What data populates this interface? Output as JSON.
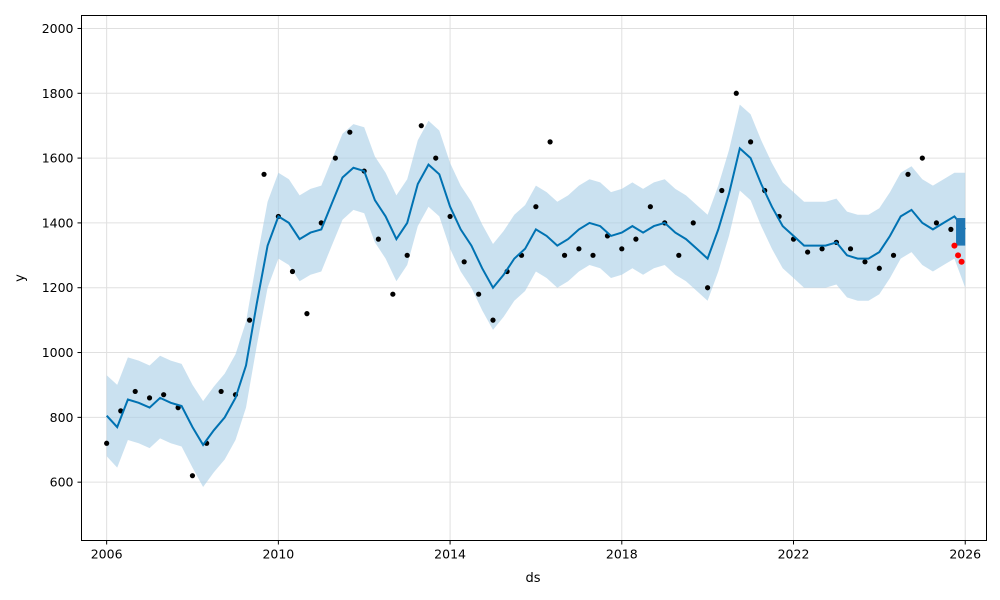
{
  "chart_data": {
    "type": "line",
    "title": "",
    "xlabel": "ds",
    "ylabel": "y",
    "xlim": [
      "2005-06-01",
      "2026-07-01"
    ],
    "ylim": [
      420,
      2040
    ],
    "x_ticks": [
      "2006",
      "2010",
      "2014",
      "2018",
      "2022",
      "2026"
    ],
    "y_ticks": [
      "600",
      "800",
      "1000",
      "1200",
      "1400",
      "1600",
      "1800",
      "2000"
    ],
    "grid": true,
    "legend": "none",
    "colors": {
      "observed": "#000000",
      "forecast_line": "#0072b2",
      "interval_fill": "#a6cde6",
      "highlight_points": "#ff0000",
      "recent_band": "#1f77b4"
    },
    "series": [
      {
        "kind": "forecast-line",
        "x": [
          "2006-01-01",
          "2006-04-01",
          "2006-07-01",
          "2006-10-01",
          "2007-01-01",
          "2007-04-01",
          "2007-07-01",
          "2007-10-01",
          "2008-01-01",
          "2008-04-01",
          "2008-07-01",
          "2008-10-01",
          "2009-01-01",
          "2009-04-01",
          "2009-07-01",
          "2009-10-01",
          "2010-01-01",
          "2010-04-01",
          "2010-07-01",
          "2010-10-01",
          "2011-01-01",
          "2011-04-01",
          "2011-07-01",
          "2011-10-01",
          "2012-01-01",
          "2012-04-01",
          "2012-07-01",
          "2012-10-01",
          "2013-01-01",
          "2013-04-01",
          "2013-07-01",
          "2013-10-01",
          "2014-01-01",
          "2014-04-01",
          "2014-07-01",
          "2014-10-01",
          "2015-01-01",
          "2015-04-01",
          "2015-07-01",
          "2015-10-01",
          "2016-01-01",
          "2016-04-01",
          "2016-07-01",
          "2016-10-01",
          "2017-01-01",
          "2017-04-01",
          "2017-07-01",
          "2017-10-01",
          "2018-01-01",
          "2018-04-01",
          "2018-07-01",
          "2018-10-01",
          "2019-01-01",
          "2019-04-01",
          "2019-07-01",
          "2019-10-01",
          "2020-01-01",
          "2020-04-01",
          "2020-07-01",
          "2020-10-01",
          "2021-01-01",
          "2021-04-01",
          "2021-07-01",
          "2021-10-01",
          "2022-01-01",
          "2022-04-01",
          "2022-07-01",
          "2022-10-01",
          "2023-01-01",
          "2023-04-01",
          "2023-07-01",
          "2023-10-01",
          "2024-01-01",
          "2024-04-01",
          "2024-07-01",
          "2024-10-01",
          "2025-01-01",
          "2025-04-01",
          "2025-07-01",
          "2025-10-01",
          "2026-01-01"
        ],
        "yhat": [
          805,
          770,
          855,
          845,
          830,
          860,
          845,
          835,
          770,
          715,
          760,
          800,
          860,
          960,
          1150,
          1330,
          1420,
          1400,
          1350,
          1370,
          1380,
          1460,
          1540,
          1570,
          1560,
          1470,
          1420,
          1350,
          1400,
          1520,
          1580,
          1550,
          1450,
          1380,
          1330,
          1260,
          1200,
          1240,
          1290,
          1320,
          1380,
          1360,
          1330,
          1350,
          1380,
          1400,
          1390,
          1360,
          1370,
          1390,
          1370,
          1390,
          1400,
          1370,
          1350,
          1320,
          1290,
          1380,
          1490,
          1630,
          1600,
          1520,
          1450,
          1390,
          1360,
          1330,
          1330,
          1330,
          1340,
          1300,
          1290,
          1290,
          1310,
          1360,
          1420,
          1440,
          1400,
          1380,
          1400,
          1420,
          1380
        ],
        "upper": [
          930,
          900,
          985,
          975,
          960,
          990,
          975,
          965,
          900,
          850,
          895,
          935,
          995,
          1095,
          1285,
          1465,
          1555,
          1535,
          1485,
          1505,
          1515,
          1595,
          1675,
          1705,
          1695,
          1605,
          1555,
          1485,
          1535,
          1655,
          1715,
          1685,
          1585,
          1515,
          1465,
          1395,
          1335,
          1375,
          1425,
          1455,
          1515,
          1495,
          1465,
          1485,
          1515,
          1535,
          1525,
          1495,
          1505,
          1525,
          1505,
          1525,
          1535,
          1505,
          1485,
          1455,
          1425,
          1515,
          1625,
          1765,
          1735,
          1655,
          1585,
          1525,
          1495,
          1465,
          1465,
          1465,
          1475,
          1435,
          1425,
          1425,
          1445,
          1495,
          1555,
          1575,
          1535,
          1515,
          1535,
          1555,
          1555
        ],
        "lower": [
          680,
          645,
          730,
          720,
          705,
          735,
          720,
          710,
          645,
          585,
          630,
          670,
          730,
          830,
          1020,
          1200,
          1290,
          1270,
          1220,
          1240,
          1250,
          1330,
          1410,
          1440,
          1430,
          1340,
          1290,
          1220,
          1270,
          1390,
          1450,
          1420,
          1320,
          1250,
          1200,
          1130,
          1070,
          1110,
          1160,
          1190,
          1250,
          1230,
          1200,
          1220,
          1250,
          1270,
          1260,
          1230,
          1240,
          1260,
          1240,
          1260,
          1270,
          1240,
          1220,
          1190,
          1160,
          1250,
          1360,
          1500,
          1470,
          1390,
          1320,
          1260,
          1230,
          1200,
          1200,
          1200,
          1210,
          1170,
          1160,
          1160,
          1180,
          1230,
          1290,
          1310,
          1270,
          1250,
          1270,
          1290,
          1200
        ]
      },
      {
        "kind": "observed-points",
        "x": [
          "2006-01-01",
          "2006-05-01",
          "2006-09-01",
          "2007-01-01",
          "2007-05-01",
          "2007-09-01",
          "2008-01-01",
          "2008-05-01",
          "2008-09-01",
          "2009-01-01",
          "2009-05-01",
          "2009-09-01",
          "2010-01-01",
          "2010-05-01",
          "2010-09-01",
          "2011-01-01",
          "2011-05-01",
          "2011-09-01",
          "2012-01-01",
          "2012-05-01",
          "2012-09-01",
          "2013-01-01",
          "2013-05-01",
          "2013-09-01",
          "2014-01-01",
          "2014-05-01",
          "2014-09-01",
          "2015-01-01",
          "2015-05-01",
          "2015-09-01",
          "2016-01-01",
          "2016-05-01",
          "2016-09-01",
          "2017-01-01",
          "2017-05-01",
          "2017-09-01",
          "2018-01-01",
          "2018-05-01",
          "2018-09-01",
          "2019-01-01",
          "2019-05-01",
          "2019-09-01",
          "2020-01-01",
          "2020-05-01",
          "2020-09-01",
          "2021-01-01",
          "2021-05-01",
          "2021-09-01",
          "2022-01-01",
          "2022-05-01",
          "2022-09-01",
          "2023-01-01",
          "2023-05-01",
          "2023-09-01",
          "2024-01-01",
          "2024-05-01",
          "2024-09-01",
          "2025-01-01",
          "2025-05-01",
          "2025-09-01"
        ],
        "y": [
          720,
          820,
          880,
          860,
          870,
          830,
          620,
          720,
          880,
          870,
          1100,
          1550,
          1420,
          1250,
          1120,
          1400,
          1600,
          1680,
          1560,
          1350,
          1180,
          1300,
          1700,
          1600,
          1420,
          1280,
          1180,
          1100,
          1250,
          1300,
          1450,
          1650,
          1300,
          1320,
          1300,
          1360,
          1320,
          1350,
          1450,
          1400,
          1300,
          1400,
          1200,
          1500,
          1800,
          1650,
          1500,
          1420,
          1350,
          1310,
          1320,
          1340,
          1320,
          1280,
          1260,
          1300,
          1550,
          1600,
          1400,
          1380
        ]
      },
      {
        "kind": "highlighted-points",
        "x": [
          "2025-10-01",
          "2025-11-01",
          "2025-12-01"
        ],
        "y": [
          1330,
          1300,
          1280
        ]
      }
    ]
  }
}
